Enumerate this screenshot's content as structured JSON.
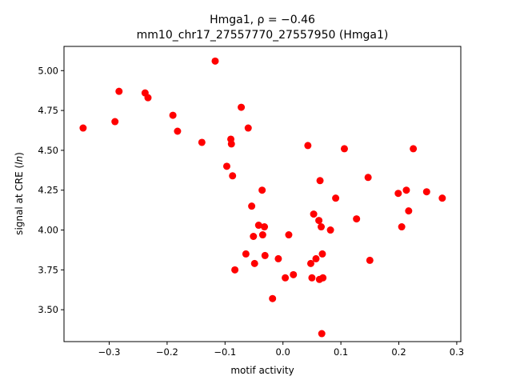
{
  "chart_data": {
    "type": "scatter",
    "title_prefix": "Hmga1, ",
    "title_stat": "ρ = −0.46",
    "title_line2": "mm10_chr17_27557770_27557950 (Hmga1)",
    "xlabel": "motif activity",
    "ylabel_prefix": "signal at CRE (",
    "ylabel_italic": "ln",
    "ylabel_suffix": ")",
    "xlim": [
      -0.378,
      0.307
    ],
    "ylim": [
      3.3,
      5.152
    ],
    "xticks": [
      -0.3,
      -0.2,
      -0.1,
      0.0,
      0.1,
      0.2,
      0.3
    ],
    "xtick_labels": [
      "−0.3",
      "−0.2",
      "−0.1",
      "0.0",
      "0.1",
      "0.2",
      "0.3"
    ],
    "yticks": [
      3.5,
      3.75,
      4.0,
      4.25,
      4.5,
      4.75,
      5.0
    ],
    "ytick_labels": [
      "3.50",
      "3.75",
      "4.00",
      "4.25",
      "4.50",
      "4.75",
      "5.00"
    ],
    "marker_color": "#ff0000",
    "points": [
      {
        "x": -0.345,
        "y": 4.64
      },
      {
        "x": -0.29,
        "y": 4.68
      },
      {
        "x": -0.283,
        "y": 4.87
      },
      {
        "x": -0.238,
        "y": 4.86
      },
      {
        "x": -0.233,
        "y": 4.83
      },
      {
        "x": -0.19,
        "y": 4.72
      },
      {
        "x": -0.182,
        "y": 4.62
      },
      {
        "x": -0.14,
        "y": 4.55
      },
      {
        "x": -0.117,
        "y": 5.06
      },
      {
        "x": -0.097,
        "y": 4.4
      },
      {
        "x": -0.09,
        "y": 4.57
      },
      {
        "x": -0.089,
        "y": 4.54
      },
      {
        "x": -0.087,
        "y": 4.34
      },
      {
        "x": -0.083,
        "y": 3.75
      },
      {
        "x": -0.072,
        "y": 4.77
      },
      {
        "x": -0.064,
        "y": 3.85
      },
      {
        "x": -0.06,
        "y": 4.64
      },
      {
        "x": -0.054,
        "y": 4.15
      },
      {
        "x": -0.051,
        "y": 3.96
      },
      {
        "x": -0.049,
        "y": 3.79
      },
      {
        "x": -0.042,
        "y": 4.03
      },
      {
        "x": -0.036,
        "y": 4.25
      },
      {
        "x": -0.035,
        "y": 3.97
      },
      {
        "x": -0.032,
        "y": 4.02
      },
      {
        "x": -0.031,
        "y": 3.84
      },
      {
        "x": -0.018,
        "y": 3.57
      },
      {
        "x": -0.008,
        "y": 3.82
      },
      {
        "x": 0.004,
        "y": 3.7
      },
      {
        "x": 0.01,
        "y": 3.97
      },
      {
        "x": 0.018,
        "y": 3.72
      },
      {
        "x": 0.043,
        "y": 4.53
      },
      {
        "x": 0.048,
        "y": 3.79
      },
      {
        "x": 0.05,
        "y": 3.7
      },
      {
        "x": 0.053,
        "y": 4.1
      },
      {
        "x": 0.057,
        "y": 3.82
      },
      {
        "x": 0.062,
        "y": 4.06
      },
      {
        "x": 0.063,
        "y": 3.69
      },
      {
        "x": 0.064,
        "y": 4.31
      },
      {
        "x": 0.066,
        "y": 4.02
      },
      {
        "x": 0.067,
        "y": 3.35
      },
      {
        "x": 0.068,
        "y": 3.85
      },
      {
        "x": 0.069,
        "y": 3.7
      },
      {
        "x": 0.082,
        "y": 4.0
      },
      {
        "x": 0.091,
        "y": 4.2
      },
      {
        "x": 0.106,
        "y": 4.51
      },
      {
        "x": 0.127,
        "y": 4.07
      },
      {
        "x": 0.147,
        "y": 4.33
      },
      {
        "x": 0.15,
        "y": 3.81
      },
      {
        "x": 0.199,
        "y": 4.23
      },
      {
        "x": 0.205,
        "y": 4.02
      },
      {
        "x": 0.213,
        "y": 4.25
      },
      {
        "x": 0.217,
        "y": 4.12
      },
      {
        "x": 0.225,
        "y": 4.51
      },
      {
        "x": 0.248,
        "y": 4.24
      },
      {
        "x": 0.275,
        "y": 4.2
      }
    ]
  }
}
